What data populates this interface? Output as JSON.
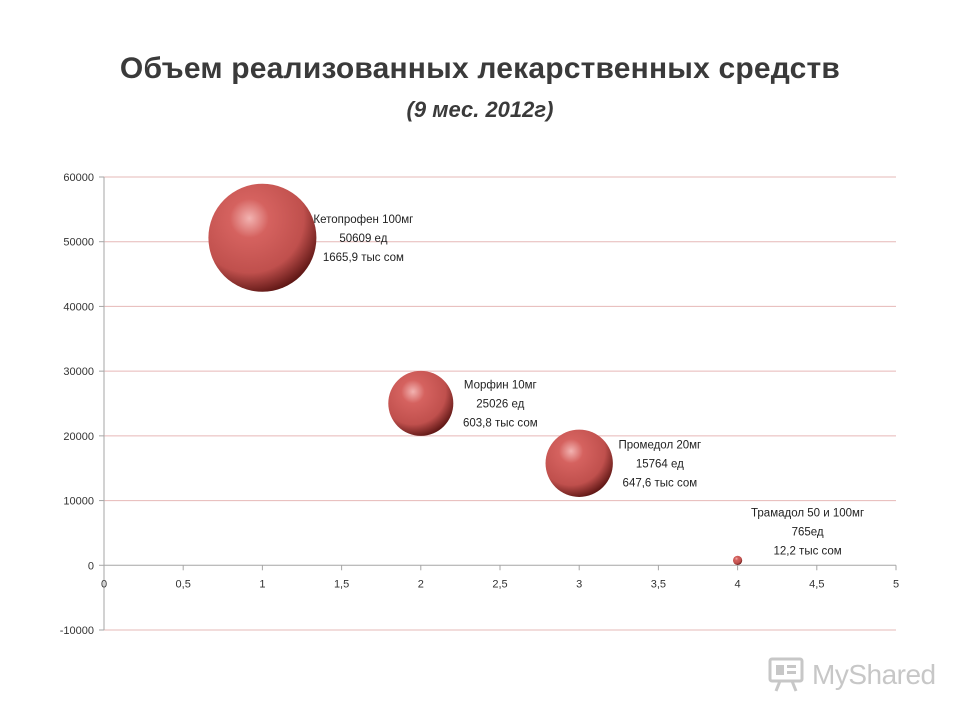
{
  "title": "Объем реализованных лекарственных средств",
  "subtitle": "(9 мес. 2012г)",
  "watermark": {
    "text": "MyShared",
    "icon": "projector-screen-icon"
  },
  "colors": {
    "bubble": "#c0504d",
    "bubble_light": "#f2b3b1",
    "bubble_dark": "#5a1412",
    "grid": "#e6b8b7",
    "axis": "#a6a6a6"
  },
  "chart_data": {
    "type": "bubble",
    "xlim": [
      0,
      5
    ],
    "ylim": [
      -10000,
      60000
    ],
    "x_ticks": [
      "0",
      "0,5",
      "1",
      "1,5",
      "2",
      "2,5",
      "3",
      "3,5",
      "4",
      "4,5",
      "5"
    ],
    "y_ticks": [
      "60000",
      "50000",
      "40000",
      "30000",
      "20000",
      "10000",
      "0",
      "-10000"
    ],
    "grid": true,
    "points": [
      {
        "x": 1,
        "y": 50609,
        "size": 1665.9,
        "label": [
          "Кетопрофен 100мг",
          "50609  ед",
          "1665,9 тыс сом"
        ]
      },
      {
        "x": 2,
        "y": 25026,
        "size": 603.8,
        "label": [
          "Морфин 10мг",
          "25026  ед",
          "603,8 тыс сом"
        ]
      },
      {
        "x": 3,
        "y": 15764,
        "size": 647.6,
        "label": [
          "Промедол 20мг",
          "15764  ед",
          "647,6 тыс сом"
        ]
      },
      {
        "x": 4,
        "y": 765,
        "size": 12.2,
        "label": [
          "Трамадол 50 и 100мг",
          "765ед",
          "12,2 тыс сом"
        ]
      }
    ]
  }
}
